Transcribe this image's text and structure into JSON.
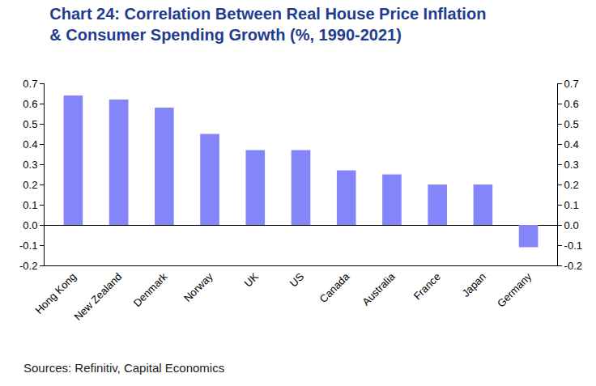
{
  "chart_data": {
    "type": "bar",
    "title": "Chart 24: Correlation Between Real House Price Inflation\n& Consumer Spending Growth (%, 1990-2021)",
    "source": "Sources: Refinitiv, Capital Economics",
    "categories": [
      "Hong Kong",
      "New Zealand",
      "Denmark",
      "Norway",
      "UK",
      "US",
      "Canada",
      "Australia",
      "France",
      "Japan",
      "Germany"
    ],
    "values": [
      0.64,
      0.62,
      0.58,
      0.45,
      0.37,
      0.37,
      0.27,
      0.25,
      0.2,
      0.2,
      -0.11
    ],
    "color": "#8585fa",
    "ylim": [
      -0.2,
      0.7
    ],
    "yticks": [
      -0.2,
      -0.1,
      {
        "value": 0,
        "label": "0.0"
      },
      0.1,
      0.2,
      0.3,
      0.4,
      0.5,
      0.6,
      0.7
    ],
    "y2lim": [
      -0.2,
      0.7
    ],
    "y2ticks": [
      -0.2,
      -0.1,
      {
        "value": 0,
        "label": "0.0"
      },
      0.1,
      0.2,
      0.3,
      0.4,
      0.5,
      0.6,
      0.7
    ],
    "grid": false
  }
}
